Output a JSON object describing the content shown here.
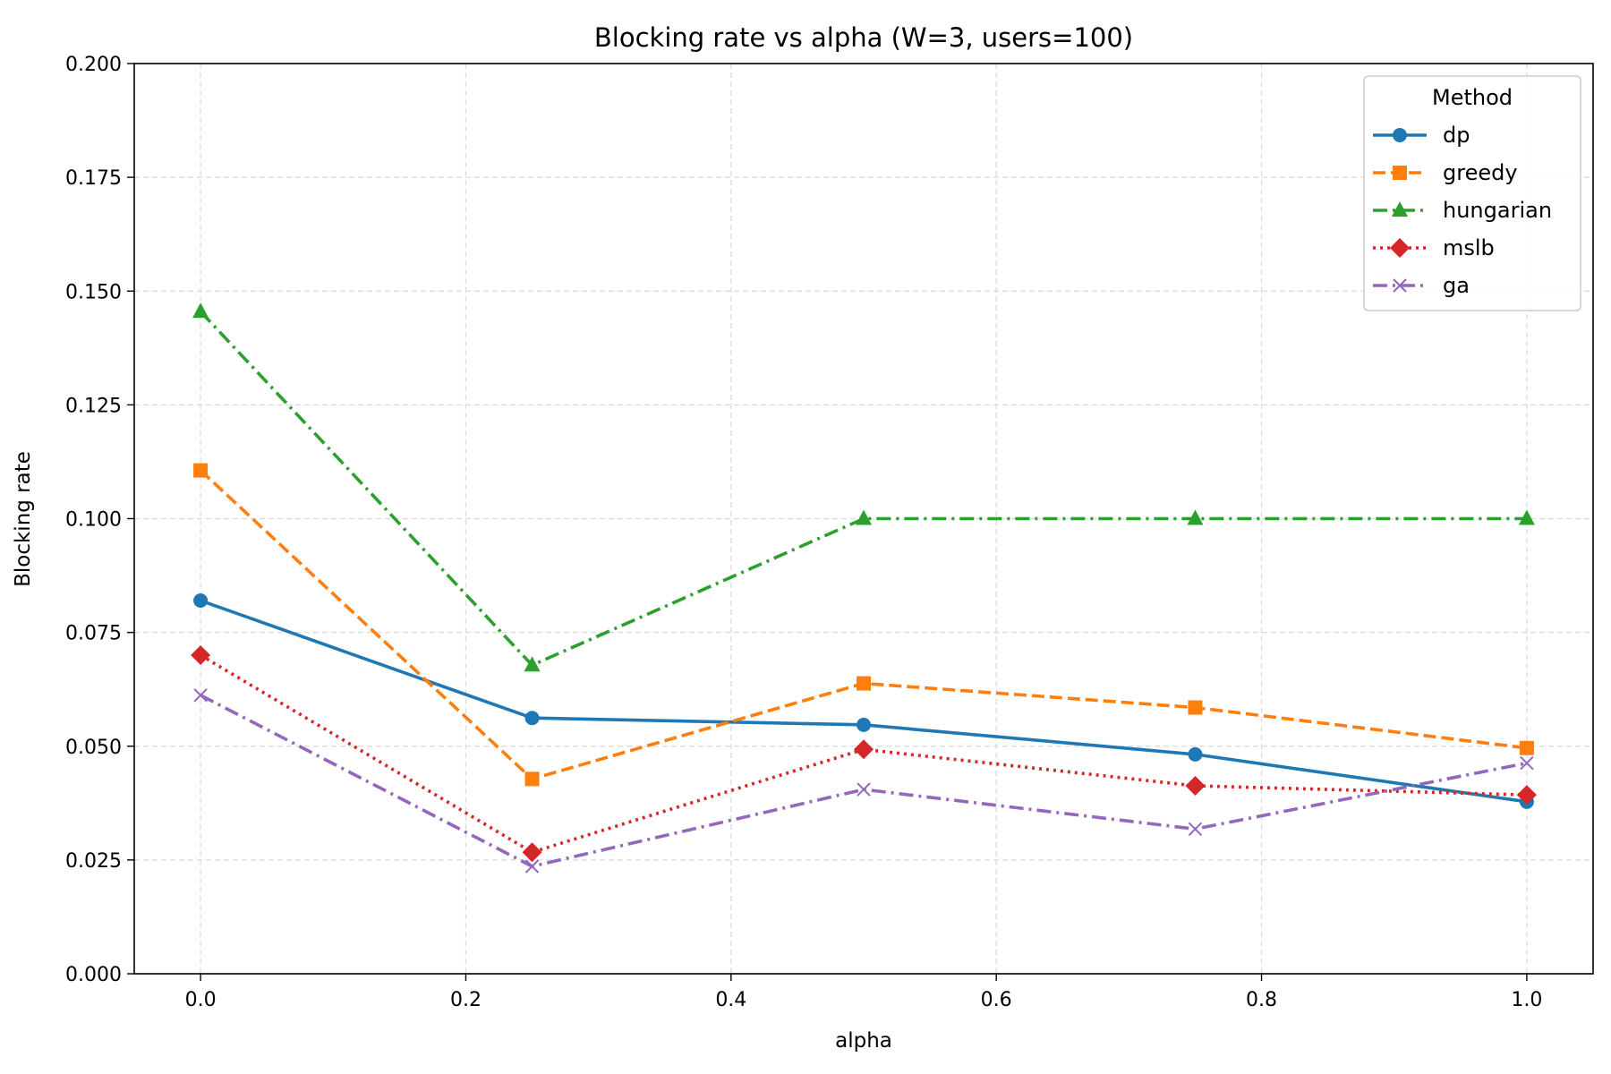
{
  "chart_data": {
    "type": "line",
    "title": "Blocking rate vs alpha (W=3, users=100)",
    "xlabel": "alpha",
    "ylabel": "Blocking rate",
    "xlim": [
      -0.05,
      1.05
    ],
    "ylim": [
      0.0,
      0.2
    ],
    "xticks": [
      0.0,
      0.2,
      0.4,
      0.6,
      0.8,
      1.0
    ],
    "xtick_labels": [
      "0.0",
      "0.2",
      "0.4",
      "0.6",
      "0.8",
      "1.0"
    ],
    "yticks": [
      0.0,
      0.025,
      0.05,
      0.075,
      0.1,
      0.125,
      0.15,
      0.175,
      0.2
    ],
    "ytick_labels": [
      "0.000",
      "0.025",
      "0.050",
      "0.075",
      "0.100",
      "0.125",
      "0.150",
      "0.175",
      "0.200"
    ],
    "grid": true,
    "legend": {
      "title": "Method",
      "position": "top-right"
    },
    "x": [
      0.0,
      0.25,
      0.5,
      0.75,
      1.0
    ],
    "series": [
      {
        "name": "dp",
        "values": [
          0.082,
          0.0562,
          0.0547,
          0.0482,
          0.0378
        ],
        "color": "#1f77b4",
        "linestyle": "solid",
        "marker": "circle"
      },
      {
        "name": "greedy",
        "values": [
          0.1106,
          0.0428,
          0.0638,
          0.0585,
          0.0496
        ],
        "color": "#ff7f0e",
        "linestyle": "dashed",
        "marker": "square"
      },
      {
        "name": "hungarian",
        "values": [
          0.1455,
          0.0678,
          0.1,
          0.1,
          0.1
        ],
        "color": "#2ca02c",
        "linestyle": "dashdot",
        "marker": "triangle"
      },
      {
        "name": "mslb",
        "values": [
          0.07,
          0.0267,
          0.0493,
          0.0413,
          0.0393
        ],
        "color": "#d62728",
        "linestyle": "dotted",
        "marker": "diamond"
      },
      {
        "name": "ga",
        "values": [
          0.0612,
          0.0236,
          0.0405,
          0.0318,
          0.0463
        ],
        "color": "#9467bd",
        "linestyle": "dashdot",
        "marker": "x"
      }
    ]
  }
}
